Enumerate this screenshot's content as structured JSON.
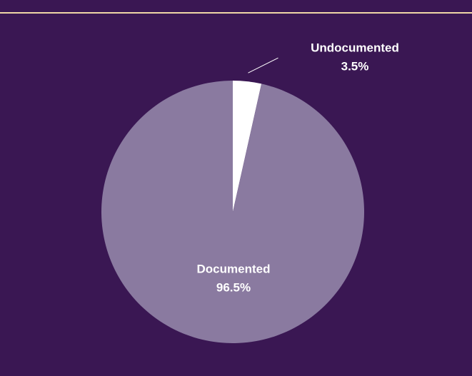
{
  "chart_data": {
    "type": "pie",
    "categories": [
      "Undocumented",
      "Documented"
    ],
    "values": [
      3.5,
      96.5
    ],
    "value_labels": [
      "3.5%",
      "96.5%"
    ],
    "colors": [
      "#ffffff",
      "#8a7aa0"
    ]
  }
}
